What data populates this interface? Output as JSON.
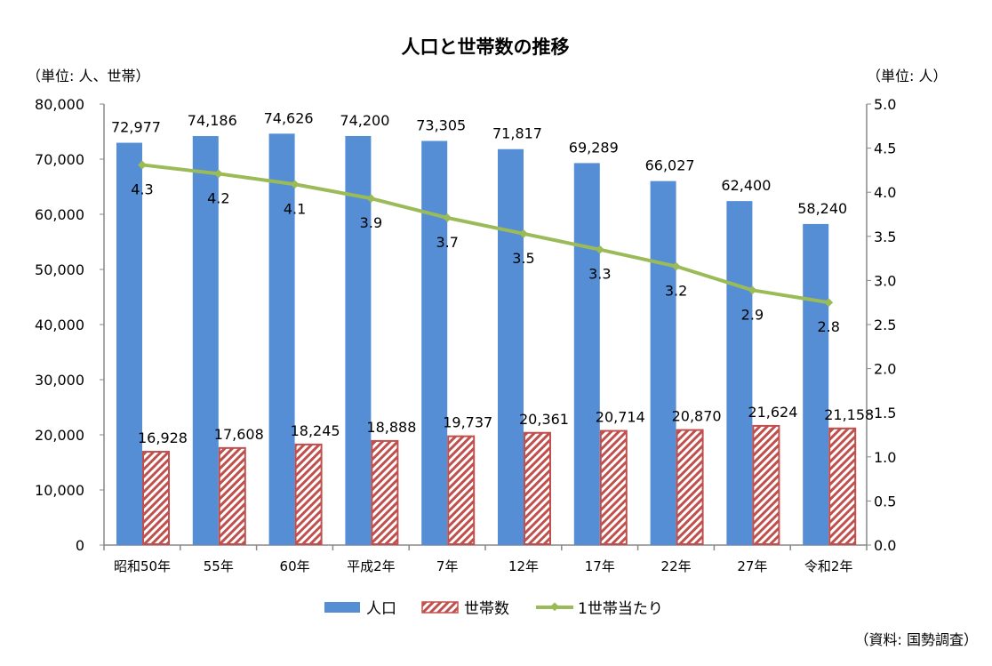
{
  "chart_data": {
    "type": "bar+line",
    "title": "人口と世帯数の推移",
    "left_unit": "（単位: 人、世帯）",
    "right_unit": "（単位: 人）",
    "source": "（資料: 国勢調査）",
    "categories": [
      "昭和50年",
      "55年",
      "60年",
      "平成2年",
      "7年",
      "12年",
      "17年",
      "22年",
      "27年",
      "令和2年"
    ],
    "left_axis": {
      "range": [
        0,
        80000
      ],
      "ticks": [
        "0",
        "10,000",
        "20,000",
        "30,000",
        "40,000",
        "50,000",
        "60,000",
        "70,000",
        "80,000"
      ]
    },
    "right_axis": {
      "range": [
        0,
        5.0
      ],
      "ticks": [
        "0.0",
        "0.5",
        "1.0",
        "1.5",
        "2.0",
        "2.5",
        "3.0",
        "3.5",
        "4.0",
        "4.5",
        "5.0"
      ]
    },
    "grid": false,
    "legend_position": "bottom",
    "series": [
      {
        "name": "人口",
        "type": "bar",
        "axis": "left",
        "color": "#558ED5",
        "values": [
          72977,
          74186,
          74626,
          74200,
          73305,
          71817,
          69289,
          66027,
          62400,
          58240
        ],
        "labels": [
          "72,977",
          "74,186",
          "74,626",
          "74,200",
          "73,305",
          "71,817",
          "69,289",
          "66,027",
          "62,400",
          "58,240"
        ]
      },
      {
        "name": "世帯数",
        "type": "bar",
        "axis": "left",
        "color": "#C0504D",
        "pattern": "diagonal-hatch",
        "values": [
          16928,
          17608,
          18245,
          18888,
          19737,
          20361,
          20714,
          20870,
          21624,
          21158
        ],
        "labels": [
          "16,928",
          "17,608",
          "18,245",
          "18,888",
          "19,737",
          "20,361",
          "20,714",
          "20,870",
          "21,624",
          "21,158"
        ]
      },
      {
        "name": "1世帯当たり",
        "type": "line",
        "axis": "right",
        "color": "#9BBB59",
        "values": [
          4.31,
          4.21,
          4.09,
          3.93,
          3.71,
          3.53,
          3.35,
          3.16,
          2.89,
          2.75
        ],
        "labels": [
          "4.3",
          "4.2",
          "4.1",
          "3.9",
          "3.7",
          "3.5",
          "3.3",
          "3.2",
          "2.9",
          "2.8"
        ]
      }
    ]
  }
}
